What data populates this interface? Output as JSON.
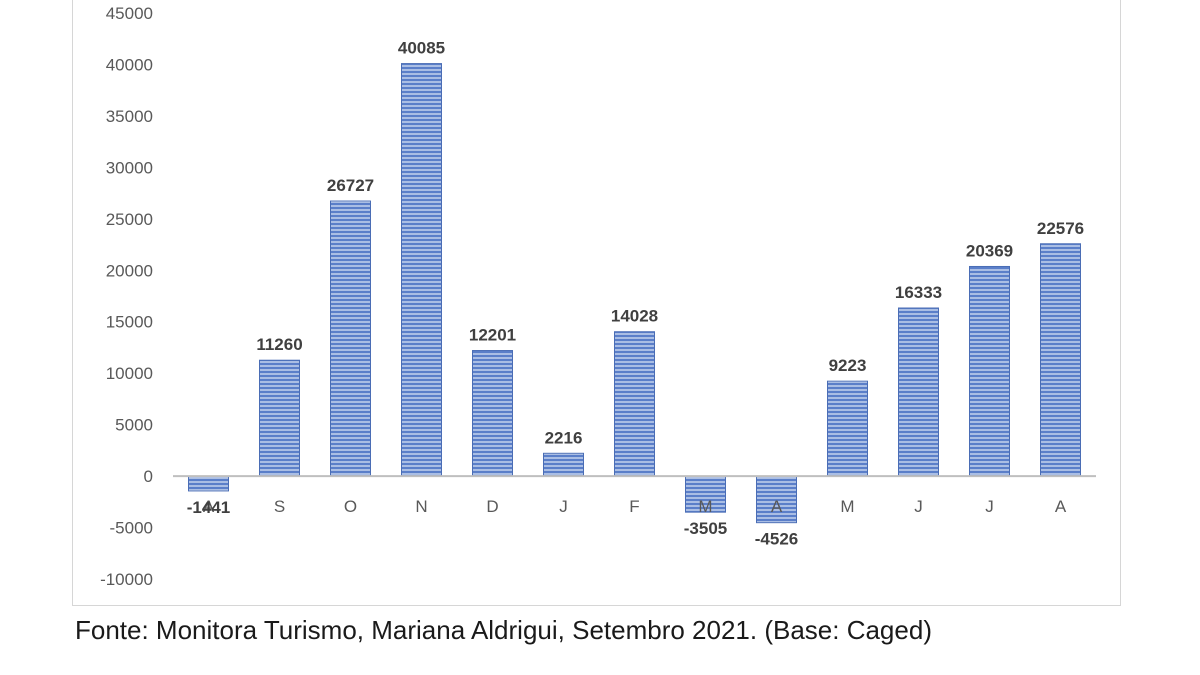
{
  "chart_data": {
    "type": "bar",
    "categories": [
      "A",
      "S",
      "O",
      "N",
      "D",
      "J",
      "F",
      "M",
      "A",
      "M",
      "J",
      "J",
      "A"
    ],
    "values": [
      -1441,
      11260,
      26727,
      40085,
      12201,
      2216,
      14028,
      -3505,
      -4526,
      9223,
      16333,
      20369,
      22576
    ],
    "data_labels": [
      "-1441",
      "11260",
      "26727",
      "40085",
      "12201",
      "2216",
      "14028",
      "-3505",
      "-4526",
      "9223",
      "16333",
      "20369",
      "22576"
    ],
    "yticks": [
      "45000",
      "40000",
      "35000",
      "30000",
      "25000",
      "20000",
      "15000",
      "10000",
      "5000",
      "0",
      "-5000",
      "-10000"
    ],
    "ylim": [
      -10000,
      45000
    ],
    "grid": false,
    "legend": "none",
    "colors": {
      "bar_fill": "#5b7fc9",
      "bar_stripe": "#dfe7f6",
      "bar_border": "#4a6db5",
      "axis": "#bfbfbf"
    }
  },
  "source_note": "Fonte: Monitora Turismo, Mariana Aldrigui, Setembro 2021. (Base: Caged)"
}
